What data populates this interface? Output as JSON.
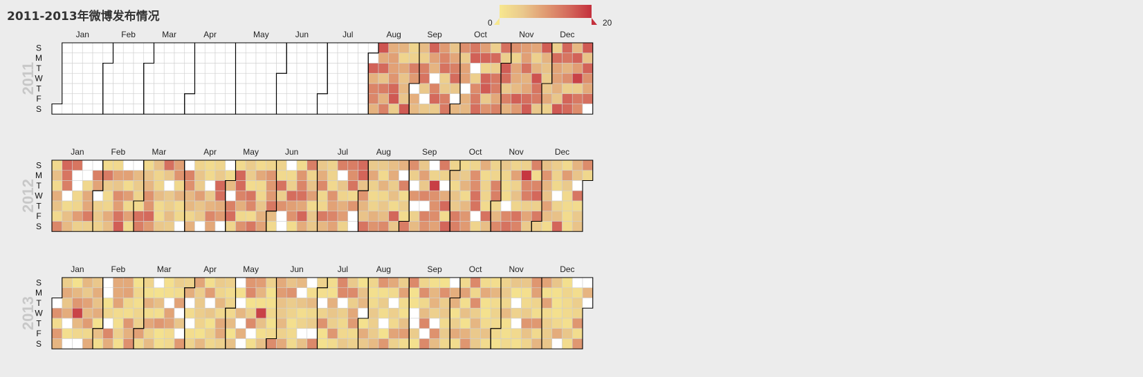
{
  "title": "2011-2013年微博发布情况",
  "colors": {
    "background": "#ececec",
    "empty": "#ffffff",
    "gradient": [
      "#f7e78f",
      "#eac98c",
      "#e09a72",
      "#d46a5c",
      "#c4303d"
    ],
    "grid": "#cfcfcf",
    "border": "#000000"
  },
  "legend": {
    "min": "0",
    "max": "20",
    "min_value": 0,
    "max_value": 20
  },
  "chart_data": {
    "type": "heatmap",
    "title": "2011-2013年微博发布情况",
    "years": [
      "2011",
      "2012",
      "2013"
    ],
    "months": [
      "Jan",
      "Feb",
      "Mar",
      "Apr",
      "May",
      "Jun",
      "Jul",
      "Aug",
      "Sep",
      "Oct",
      "Nov",
      "Dec"
    ],
    "day_labels": [
      "S",
      "M",
      "T",
      "W",
      "T",
      "F",
      "S"
    ],
    "value_range": [
      0,
      20
    ],
    "first_data_date": "2011-07-31"
  }
}
